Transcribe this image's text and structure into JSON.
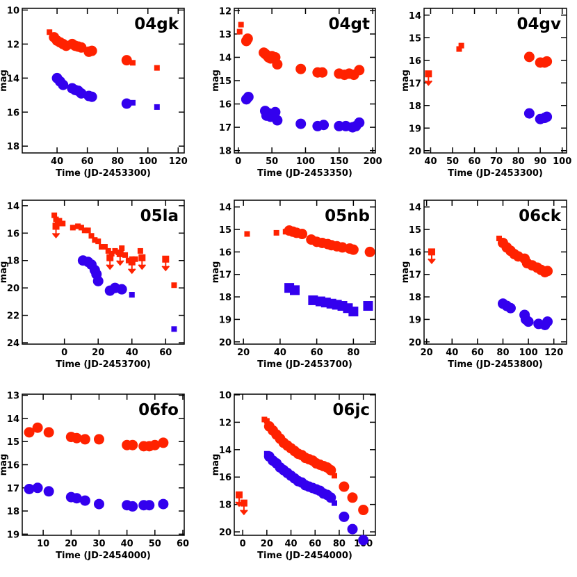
{
  "chart_data": [
    {
      "type": "scatter",
      "title": "04gk",
      "xlabel": "Time (JD-2453300)",
      "ylabel": "mag",
      "xlim": [
        17,
        124
      ],
      "xticks": [
        40,
        60,
        80,
        100,
        120
      ],
      "ylim": [
        18.4,
        9.9
      ],
      "yticks": [
        10,
        12,
        14,
        16,
        18
      ],
      "series": [
        {
          "color": "#ff2200",
          "marker": "circle",
          "x": [
            38,
            40,
            42,
            44,
            46,
            50,
            52,
            54,
            56,
            61,
            63,
            86
          ],
          "values": [
            11.6,
            11.8,
            11.9,
            12.0,
            12.1,
            12.0,
            12.1,
            12.15,
            12.2,
            12.45,
            12.4,
            12.95
          ]
        },
        {
          "color": "#ff2200",
          "marker": "square",
          "x": [
            35,
            90,
            106
          ],
          "values": [
            11.3,
            13.1,
            13.4
          ]
        },
        {
          "color": "#3300ee",
          "marker": "circle",
          "x": [
            40,
            42,
            44,
            50,
            52,
            54,
            56,
            61,
            63,
            86
          ],
          "values": [
            14.0,
            14.2,
            14.4,
            14.6,
            14.7,
            14.75,
            14.9,
            15.05,
            15.1,
            15.5
          ]
        },
        {
          "color": "#3300ee",
          "marker": "square",
          "x": [
            90,
            106
          ],
          "values": [
            15.45,
            15.7
          ]
        }
      ]
    },
    {
      "type": "scatter",
      "title": "04gt",
      "xlabel": "Time (JD-2453350)",
      "ylabel": "mag",
      "xlim": [
        -6,
        204
      ],
      "xticks": [
        0,
        50,
        100,
        150,
        200
      ],
      "ylim": [
        18.1,
        11.9
      ],
      "yticks": [
        12,
        13,
        14,
        15,
        16,
        17,
        18
      ],
      "series": [
        {
          "color": "#ff2200",
          "marker": "square",
          "x": [
            2,
            4
          ],
          "values": [
            12.9,
            12.6
          ]
        },
        {
          "color": "#ff2200",
          "marker": "circle",
          "x": [
            12,
            14,
            38,
            40,
            42,
            45,
            48,
            50,
            55,
            58,
            93,
            118,
            125,
            150,
            158,
            165,
            172,
            180
          ],
          "values": [
            13.3,
            13.2,
            13.8,
            13.85,
            13.9,
            14.0,
            14.05,
            13.95,
            14.0,
            14.3,
            14.5,
            14.65,
            14.65,
            14.7,
            14.75,
            14.7,
            14.75,
            14.55
          ]
        },
        {
          "color": "#3300ee",
          "marker": "circle",
          "x": [
            12,
            15,
            40,
            42,
            45,
            48,
            52,
            55,
            58,
            93,
            118,
            127,
            150,
            160,
            170,
            175,
            180
          ],
          "values": [
            15.8,
            15.7,
            16.3,
            16.5,
            16.4,
            16.55,
            16.5,
            16.35,
            16.7,
            16.85,
            16.95,
            16.9,
            16.95,
            16.95,
            17.0,
            16.95,
            16.8
          ]
        }
      ]
    },
    {
      "type": "scatter",
      "title": "04gv",
      "xlabel": "Time (JD-2453300)",
      "ylabel": "mag",
      "xlim": [
        37,
        102
      ],
      "xticks": [
        40,
        50,
        60,
        70,
        80,
        90,
        100
      ],
      "ylim": [
        20.1,
        13.7
      ],
      "yticks": [
        14,
        15,
        16,
        17,
        18,
        19,
        20
      ],
      "series": [
        {
          "color": "#ff2200",
          "marker": "arrow",
          "x": [
            39
          ],
          "values": [
            16.6
          ]
        },
        {
          "color": "#ff2200",
          "marker": "square",
          "x": [
            53,
            54
          ],
          "values": [
            15.5,
            15.35
          ]
        },
        {
          "color": "#ff2200",
          "marker": "circle",
          "x": [
            85,
            90,
            92,
            93
          ],
          "values": [
            15.85,
            16.1,
            16.1,
            16.05
          ]
        },
        {
          "color": "#3300ee",
          "marker": "circle",
          "x": [
            85,
            90,
            92,
            93
          ],
          "values": [
            18.35,
            18.6,
            18.55,
            18.5
          ]
        }
      ]
    },
    {
      "type": "scatter",
      "title": "05la",
      "xlabel": "Time (JD-2453700)",
      "ylabel": "mag",
      "xlim": [
        -25,
        71
      ],
      "xticks": [
        0,
        20,
        40,
        60
      ],
      "ylim": [
        24.1,
        13.6
      ],
      "yticks": [
        14,
        16,
        18,
        20,
        22,
        24
      ],
      "series": [
        {
          "color": "#ff2200",
          "marker": "square",
          "x": [
            -6,
            -5,
            -4,
            -3,
            -2,
            -1,
            5,
            8,
            10,
            12,
            14,
            16,
            18,
            20,
            22,
            24,
            26,
            28,
            30,
            32,
            34,
            36,
            38,
            40,
            42,
            45,
            65
          ],
          "values": [
            14.7,
            15.0,
            15.2,
            15.1,
            15.3,
            15.3,
            15.6,
            15.5,
            15.6,
            15.8,
            15.8,
            16.2,
            16.5,
            16.6,
            17.0,
            17.0,
            17.3,
            17.5,
            17.3,
            17.4,
            17.1,
            17.6,
            18.0,
            17.9,
            17.9,
            17.3,
            19.8
          ]
        },
        {
          "color": "#ff2200",
          "marker": "arrow",
          "x": [
            -5,
            27,
            33,
            40,
            46,
            60
          ],
          "values": [
            15.5,
            17.8,
            17.5,
            18.1,
            17.8,
            17.9
          ]
        },
        {
          "color": "#3300ee",
          "marker": "circle",
          "x": [
            11,
            14,
            16,
            18,
            19,
            20,
            27,
            30,
            34
          ],
          "values": [
            18.0,
            18.1,
            18.3,
            18.7,
            19.0,
            19.5,
            20.2,
            20.0,
            20.1
          ]
        },
        {
          "color": "#3300ee",
          "marker": "square",
          "x": [
            40,
            65
          ],
          "values": [
            20.5,
            23.0
          ]
        }
      ]
    },
    {
      "type": "scatter",
      "title": "05nb",
      "xlabel": "Time (JD-2453700)",
      "ylabel": "mag",
      "xlim": [
        15,
        92
      ],
      "xticks": [
        20,
        40,
        60,
        80
      ],
      "ylim": [
        20.1,
        13.7
      ],
      "yticks": [
        14,
        15,
        16,
        17,
        18,
        19,
        20
      ],
      "series": [
        {
          "color": "#ff2200",
          "marker": "square",
          "x": [
            22,
            38,
            43
          ],
          "values": [
            15.2,
            15.15,
            15.1
          ]
        },
        {
          "color": "#ff2200",
          "marker": "circle",
          "x": [
            45,
            47,
            49,
            52,
            57,
            60,
            63,
            66,
            68,
            71,
            74,
            78,
            80,
            89
          ],
          "values": [
            15.05,
            15.1,
            15.15,
            15.2,
            15.45,
            15.55,
            15.6,
            15.65,
            15.7,
            15.75,
            15.8,
            15.85,
            15.9,
            16.0
          ]
        },
        {
          "color": "#3300ee",
          "marker": "bigsquare",
          "x": [
            45,
            48,
            58,
            62,
            65,
            68,
            71,
            74,
            77,
            80,
            88
          ],
          "values": [
            17.6,
            17.7,
            18.15,
            18.2,
            18.25,
            18.3,
            18.35,
            18.4,
            18.5,
            18.65,
            18.4
          ]
        }
      ]
    },
    {
      "type": "scatter",
      "title": "06ck",
      "xlabel": "Time (JD-2453800)",
      "ylabel": "mag",
      "xlim": [
        18,
        130
      ],
      "xticks": [
        20,
        40,
        60,
        80,
        100,
        120
      ],
      "ylim": [
        20.1,
        13.7
      ],
      "yticks": [
        14,
        15,
        16,
        17,
        18,
        19,
        20
      ],
      "series": [
        {
          "color": "#ff2200",
          "marker": "arrow",
          "x": [
            24
          ],
          "values": [
            16.0
          ]
        },
        {
          "color": "#ff2200",
          "marker": "square",
          "x": [
            77
          ],
          "values": [
            15.4
          ]
        },
        {
          "color": "#ff2200",
          "marker": "circle",
          "x": [
            80,
            83,
            86,
            89,
            92,
            97,
            99,
            103,
            107,
            110,
            113,
            115
          ],
          "values": [
            15.6,
            15.8,
            15.95,
            16.1,
            16.2,
            16.3,
            16.5,
            16.6,
            16.7,
            16.8,
            16.9,
            16.85
          ]
        },
        {
          "color": "#3300ee",
          "marker": "circle",
          "x": [
            80,
            83,
            86,
            97,
            98,
            100,
            108,
            113,
            115
          ],
          "values": [
            18.3,
            18.4,
            18.5,
            18.8,
            19.0,
            19.1,
            19.2,
            19.25,
            19.1
          ]
        }
      ]
    },
    {
      "type": "scatter",
      "title": "06fo",
      "xlabel": "Time (JD-2454000)",
      "ylabel": "mag",
      "xlim": [
        2.5,
        60.5
      ],
      "xticks": [
        10,
        20,
        30,
        40,
        50,
        60
      ],
      "ylim": [
        19.05,
        12.95
      ],
      "yticks": [
        13,
        14,
        15,
        16,
        17,
        18,
        19
      ],
      "series": [
        {
          "color": "#ff2200",
          "marker": "circle",
          "x": [
            5,
            8,
            12,
            20,
            22,
            25,
            30,
            40,
            42,
            46,
            48,
            50,
            53
          ],
          "values": [
            14.6,
            14.4,
            14.6,
            14.8,
            14.85,
            14.9,
            14.9,
            15.15,
            15.15,
            15.2,
            15.2,
            15.15,
            15.05
          ]
        },
        {
          "color": "#3300ee",
          "marker": "circle",
          "x": [
            5,
            8,
            12,
            20,
            22,
            25,
            30,
            40,
            42,
            46,
            48,
            53
          ],
          "values": [
            17.05,
            17.0,
            17.15,
            17.4,
            17.45,
            17.55,
            17.7,
            17.75,
            17.8,
            17.75,
            17.75,
            17.7
          ]
        }
      ]
    },
    {
      "type": "scatter",
      "title": "06jc",
      "xlabel": "Time (JD-2454000)",
      "ylabel": "mag",
      "xlim": [
        -7,
        110
      ],
      "xticks": [
        0,
        20,
        40,
        60,
        80,
        100
      ],
      "ylim": [
        20.25,
        9.95
      ],
      "yticks": [
        10,
        12,
        14,
        16,
        18,
        20
      ],
      "series": [
        {
          "color": "#ff2200",
          "marker": "arrow",
          "x": [
            -3,
            1
          ],
          "values": [
            17.3,
            17.9
          ]
        },
        {
          "color": "#ff2200",
          "marker": "square",
          "x": [
            18,
            20,
            76
          ],
          "values": [
            11.8,
            11.9,
            15.9
          ]
        },
        {
          "color": "#ff2200",
          "marker": "circle",
          "x": [
            22,
            25,
            28,
            31,
            34,
            37,
            40,
            43,
            46,
            49,
            52,
            55,
            58,
            61,
            64,
            67,
            70,
            73,
            84,
            91,
            100
          ],
          "values": [
            12.3,
            12.6,
            12.9,
            13.2,
            13.5,
            13.7,
            13.9,
            14.1,
            14.3,
            14.4,
            14.6,
            14.7,
            14.8,
            15.0,
            15.1,
            15.2,
            15.3,
            15.5,
            16.7,
            17.5,
            18.4
          ]
        },
        {
          "color": "#3300ee",
          "marker": "square",
          "x": [
            20,
            76
          ],
          "values": [
            14.3,
            17.9
          ]
        },
        {
          "color": "#3300ee",
          "marker": "circle",
          "x": [
            22,
            25,
            28,
            31,
            34,
            37,
            40,
            43,
            46,
            49,
            52,
            55,
            58,
            61,
            64,
            67,
            70,
            73,
            84,
            91,
            100
          ],
          "values": [
            14.5,
            14.8,
            15.0,
            15.3,
            15.5,
            15.7,
            15.9,
            16.1,
            16.3,
            16.4,
            16.6,
            16.7,
            16.8,
            16.9,
            17.0,
            17.2,
            17.3,
            17.5,
            18.9,
            19.8,
            20.6
          ]
        }
      ]
    }
  ]
}
